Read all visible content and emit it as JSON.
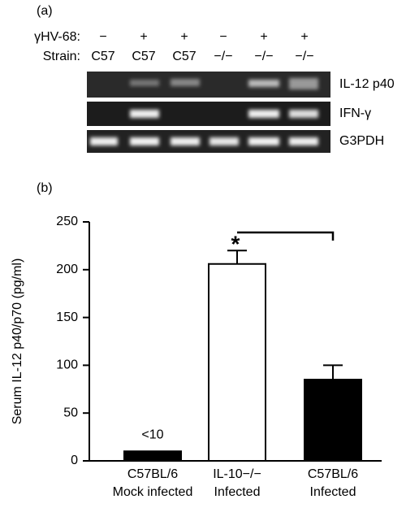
{
  "gel": {
    "panel_label": "(a)",
    "rows": [
      {
        "label": "γHV-68:",
        "values": [
          "−",
          "+",
          "+",
          "−",
          "+",
          "+"
        ]
      },
      {
        "label": "Strain:",
        "values": [
          "C57",
          "C57",
          "C57",
          "−/−",
          "−/−",
          "−/−"
        ]
      }
    ],
    "bands": [
      "IL-12 p40",
      "IFN-γ",
      "G3PDH"
    ]
  },
  "chart_data": {
    "type": "bar",
    "panel_label": "(b)",
    "ylabel": "Serum IL-12 p40/p70 (pg/ml)",
    "categories": [
      [
        "C57BL/6",
        "Mock infected"
      ],
      [
        "IL-10−/−",
        "Infected"
      ],
      [
        "C57BL/6",
        "Infected"
      ]
    ],
    "values": [
      10,
      206,
      85
    ],
    "value_labels": [
      "<10",
      null,
      null
    ],
    "errors": [
      null,
      14,
      15
    ],
    "colors": [
      "#000000",
      "#ffffff",
      "#000000"
    ],
    "annotation": "*",
    "ylim": [
      0,
      250
    ],
    "yticks": [
      0,
      50,
      100,
      150,
      200,
      250
    ]
  }
}
